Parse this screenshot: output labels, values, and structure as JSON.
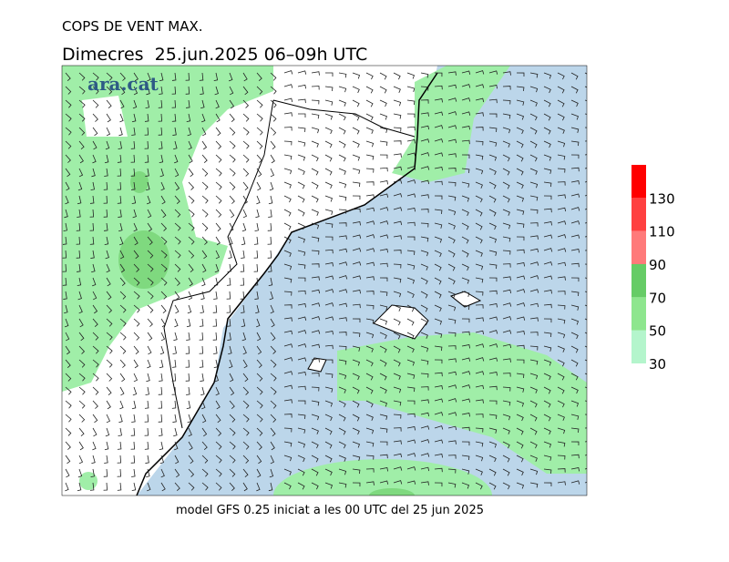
{
  "title": "COPS DE VENT MAX.",
  "subtitle": "Dimecres  25.jun.2025 06–09h UTC",
  "logo": "ara.cat",
  "footer": "model GFS 0.25 iniciat a les 00 UTC del 25 jun 2025",
  "legend": {
    "range": [
      30,
      150
    ],
    "levels": [
      30,
      50,
      70,
      90,
      110,
      130
    ],
    "colors": [
      "#b4f5cc",
      "#8ee68e",
      "#66cc66",
      "#ff7a7a",
      "#ff4040",
      "#ff0000"
    ]
  }
}
